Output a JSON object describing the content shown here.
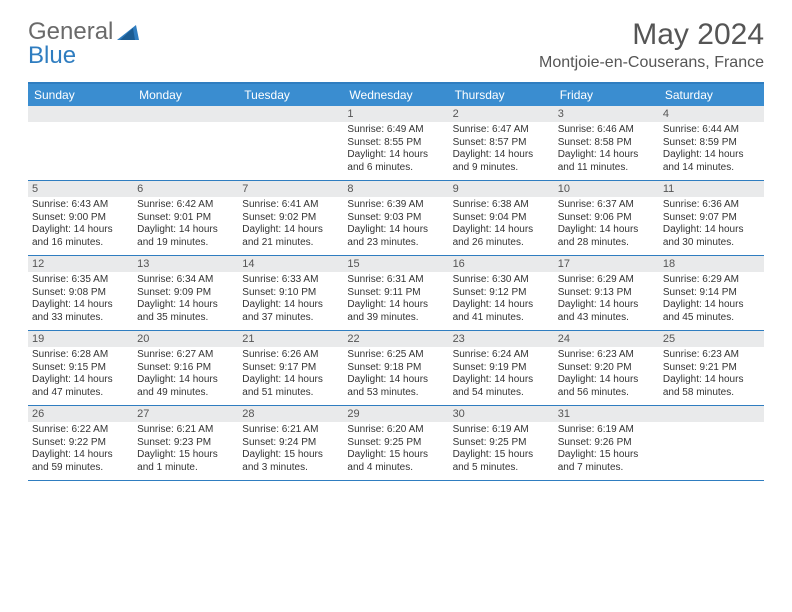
{
  "brand": {
    "general": "General",
    "blue": "Blue"
  },
  "title": "May 2024",
  "location": "Montjoie-en-Couserans, France",
  "colors": {
    "header_bg": "#3a8dd0",
    "border": "#2f7dc0",
    "daynum_bg": "#e9eaeb",
    "text": "#333333",
    "title_text": "#555555"
  },
  "day_headers": [
    "Sunday",
    "Monday",
    "Tuesday",
    "Wednesday",
    "Thursday",
    "Friday",
    "Saturday"
  ],
  "weeks": [
    [
      {
        "n": "",
        "sr": "",
        "ss": "",
        "dl": ""
      },
      {
        "n": "",
        "sr": "",
        "ss": "",
        "dl": ""
      },
      {
        "n": "",
        "sr": "",
        "ss": "",
        "dl": ""
      },
      {
        "n": "1",
        "sr": "Sunrise: 6:49 AM",
        "ss": "Sunset: 8:55 PM",
        "dl": "Daylight: 14 hours and 6 minutes."
      },
      {
        "n": "2",
        "sr": "Sunrise: 6:47 AM",
        "ss": "Sunset: 8:57 PM",
        "dl": "Daylight: 14 hours and 9 minutes."
      },
      {
        "n": "3",
        "sr": "Sunrise: 6:46 AM",
        "ss": "Sunset: 8:58 PM",
        "dl": "Daylight: 14 hours and 11 minutes."
      },
      {
        "n": "4",
        "sr": "Sunrise: 6:44 AM",
        "ss": "Sunset: 8:59 PM",
        "dl": "Daylight: 14 hours and 14 minutes."
      }
    ],
    [
      {
        "n": "5",
        "sr": "Sunrise: 6:43 AM",
        "ss": "Sunset: 9:00 PM",
        "dl": "Daylight: 14 hours and 16 minutes."
      },
      {
        "n": "6",
        "sr": "Sunrise: 6:42 AM",
        "ss": "Sunset: 9:01 PM",
        "dl": "Daylight: 14 hours and 19 minutes."
      },
      {
        "n": "7",
        "sr": "Sunrise: 6:41 AM",
        "ss": "Sunset: 9:02 PM",
        "dl": "Daylight: 14 hours and 21 minutes."
      },
      {
        "n": "8",
        "sr": "Sunrise: 6:39 AM",
        "ss": "Sunset: 9:03 PM",
        "dl": "Daylight: 14 hours and 23 minutes."
      },
      {
        "n": "9",
        "sr": "Sunrise: 6:38 AM",
        "ss": "Sunset: 9:04 PM",
        "dl": "Daylight: 14 hours and 26 minutes."
      },
      {
        "n": "10",
        "sr": "Sunrise: 6:37 AM",
        "ss": "Sunset: 9:06 PM",
        "dl": "Daylight: 14 hours and 28 minutes."
      },
      {
        "n": "11",
        "sr": "Sunrise: 6:36 AM",
        "ss": "Sunset: 9:07 PM",
        "dl": "Daylight: 14 hours and 30 minutes."
      }
    ],
    [
      {
        "n": "12",
        "sr": "Sunrise: 6:35 AM",
        "ss": "Sunset: 9:08 PM",
        "dl": "Daylight: 14 hours and 33 minutes."
      },
      {
        "n": "13",
        "sr": "Sunrise: 6:34 AM",
        "ss": "Sunset: 9:09 PM",
        "dl": "Daylight: 14 hours and 35 minutes."
      },
      {
        "n": "14",
        "sr": "Sunrise: 6:33 AM",
        "ss": "Sunset: 9:10 PM",
        "dl": "Daylight: 14 hours and 37 minutes."
      },
      {
        "n": "15",
        "sr": "Sunrise: 6:31 AM",
        "ss": "Sunset: 9:11 PM",
        "dl": "Daylight: 14 hours and 39 minutes."
      },
      {
        "n": "16",
        "sr": "Sunrise: 6:30 AM",
        "ss": "Sunset: 9:12 PM",
        "dl": "Daylight: 14 hours and 41 minutes."
      },
      {
        "n": "17",
        "sr": "Sunrise: 6:29 AM",
        "ss": "Sunset: 9:13 PM",
        "dl": "Daylight: 14 hours and 43 minutes."
      },
      {
        "n": "18",
        "sr": "Sunrise: 6:29 AM",
        "ss": "Sunset: 9:14 PM",
        "dl": "Daylight: 14 hours and 45 minutes."
      }
    ],
    [
      {
        "n": "19",
        "sr": "Sunrise: 6:28 AM",
        "ss": "Sunset: 9:15 PM",
        "dl": "Daylight: 14 hours and 47 minutes."
      },
      {
        "n": "20",
        "sr": "Sunrise: 6:27 AM",
        "ss": "Sunset: 9:16 PM",
        "dl": "Daylight: 14 hours and 49 minutes."
      },
      {
        "n": "21",
        "sr": "Sunrise: 6:26 AM",
        "ss": "Sunset: 9:17 PM",
        "dl": "Daylight: 14 hours and 51 minutes."
      },
      {
        "n": "22",
        "sr": "Sunrise: 6:25 AM",
        "ss": "Sunset: 9:18 PM",
        "dl": "Daylight: 14 hours and 53 minutes."
      },
      {
        "n": "23",
        "sr": "Sunrise: 6:24 AM",
        "ss": "Sunset: 9:19 PM",
        "dl": "Daylight: 14 hours and 54 minutes."
      },
      {
        "n": "24",
        "sr": "Sunrise: 6:23 AM",
        "ss": "Sunset: 9:20 PM",
        "dl": "Daylight: 14 hours and 56 minutes."
      },
      {
        "n": "25",
        "sr": "Sunrise: 6:23 AM",
        "ss": "Sunset: 9:21 PM",
        "dl": "Daylight: 14 hours and 58 minutes."
      }
    ],
    [
      {
        "n": "26",
        "sr": "Sunrise: 6:22 AM",
        "ss": "Sunset: 9:22 PM",
        "dl": "Daylight: 14 hours and 59 minutes."
      },
      {
        "n": "27",
        "sr": "Sunrise: 6:21 AM",
        "ss": "Sunset: 9:23 PM",
        "dl": "Daylight: 15 hours and 1 minute."
      },
      {
        "n": "28",
        "sr": "Sunrise: 6:21 AM",
        "ss": "Sunset: 9:24 PM",
        "dl": "Daylight: 15 hours and 3 minutes."
      },
      {
        "n": "29",
        "sr": "Sunrise: 6:20 AM",
        "ss": "Sunset: 9:25 PM",
        "dl": "Daylight: 15 hours and 4 minutes."
      },
      {
        "n": "30",
        "sr": "Sunrise: 6:19 AM",
        "ss": "Sunset: 9:25 PM",
        "dl": "Daylight: 15 hours and 5 minutes."
      },
      {
        "n": "31",
        "sr": "Sunrise: 6:19 AM",
        "ss": "Sunset: 9:26 PM",
        "dl": "Daylight: 15 hours and 7 minutes."
      },
      {
        "n": "",
        "sr": "",
        "ss": "",
        "dl": ""
      }
    ]
  ]
}
